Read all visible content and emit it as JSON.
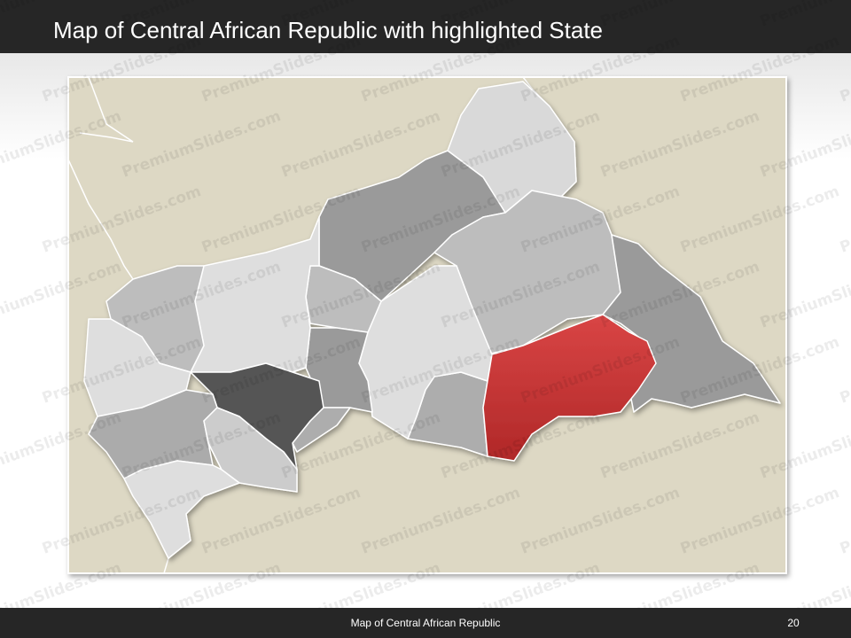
{
  "header": {
    "title": "Map of Central African Republic with highlighted State"
  },
  "watermark": "PremiumSlides.com",
  "footer": {
    "text": "Map of Central African Republic",
    "page": "20"
  }
}
